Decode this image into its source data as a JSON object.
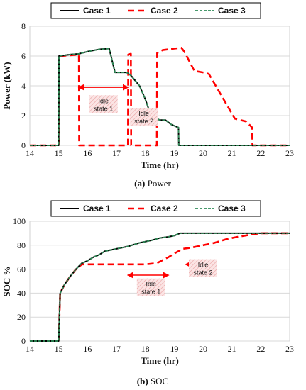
{
  "chart_data": [
    {
      "type": "line",
      "caption_label": "(a)",
      "caption_text": " Power",
      "xlabel": "Time (hr)",
      "ylabel": "Power (kW)",
      "xlim": [
        14,
        23
      ],
      "ylim": [
        0,
        8
      ],
      "xticks": [
        14,
        15,
        16,
        17,
        18,
        19,
        20,
        21,
        22,
        23
      ],
      "yticks": [
        0,
        2,
        4,
        6,
        8
      ],
      "legend": "top",
      "series": [
        {
          "name": "Case 1",
          "color": "#000000",
          "style": "solid",
          "x": [
            14,
            15,
            15.01,
            15.2,
            15.4,
            15.7,
            16.0,
            16.4,
            16.75,
            16.95,
            17.35,
            17.5,
            17.8,
            18.0,
            18.2,
            18.5,
            18.7,
            18.9,
            19.15,
            19.16,
            23
          ],
          "y": [
            0,
            0,
            6.0,
            6.05,
            6.1,
            6.15,
            6.3,
            6.45,
            6.5,
            4.9,
            4.9,
            4.7,
            4.0,
            3.1,
            2.0,
            1.7,
            1.7,
            1.4,
            1.2,
            0,
            0
          ]
        },
        {
          "name": "Case 2",
          "color": "#ff0000",
          "style": "dashed",
          "x": [
            14,
            15,
            15.01,
            15.4,
            15.7,
            15.71,
            17.4,
            17.41,
            17.5,
            17.51,
            18.4,
            18.41,
            18.6,
            19.0,
            19.25,
            19.35,
            19.7,
            20.0,
            20.2,
            20.5,
            20.8,
            21.1,
            21.3,
            21.5,
            21.7,
            21.71,
            23
          ],
          "y": [
            0,
            0,
            6.0,
            6.05,
            6.1,
            0,
            0,
            6.1,
            6.15,
            0,
            0,
            6.2,
            6.4,
            6.5,
            6.55,
            6.3,
            5.0,
            4.9,
            4.8,
            3.8,
            2.8,
            1.8,
            1.7,
            1.6,
            1.2,
            0,
            0
          ]
        },
        {
          "name": "Case 3",
          "color": "#2e8b57",
          "style": "dotted",
          "x": [
            14,
            15,
            15.01,
            15.2,
            15.4,
            15.7,
            16.0,
            16.4,
            16.75,
            16.95,
            17.35,
            17.5,
            17.8,
            18.0,
            18.2,
            18.5,
            18.7,
            18.9,
            19.15,
            19.16,
            23
          ],
          "y": [
            0,
            0,
            6.0,
            6.05,
            6.1,
            6.15,
            6.3,
            6.45,
            6.5,
            4.9,
            4.9,
            4.7,
            4.0,
            3.1,
            2.0,
            1.7,
            1.7,
            1.4,
            1.2,
            0,
            0
          ]
        }
      ],
      "annotations": [
        {
          "lines": [
            "Idle",
            "state 1"
          ],
          "x_from": 15.7,
          "x_to": 17.4,
          "y": 3.9,
          "label_x": 16.55,
          "label_y": 2.7
        },
        {
          "lines": [
            "Idle",
            "state 2"
          ],
          "x_from": 17.5,
          "x_to": 18.4,
          "y": 2.3,
          "label_x": 17.95,
          "label_y": 1.85
        }
      ]
    },
    {
      "type": "line",
      "caption_label": "(b)",
      "caption_text": " SOC",
      "xlabel": "Time (hr)",
      "ylabel": "SOC %",
      "xlim": [
        14,
        23
      ],
      "ylim": [
        0,
        100
      ],
      "xticks": [
        14,
        15,
        16,
        17,
        18,
        19,
        20,
        21,
        22,
        23
      ],
      "yticks": [
        0,
        20,
        40,
        60,
        80,
        100
      ],
      "legend": "top",
      "series": [
        {
          "name": "Case 1",
          "color": "#000000",
          "style": "solid",
          "x": [
            14,
            15,
            15.05,
            15.2,
            15.4,
            15.6,
            15.8,
            16.0,
            16.2,
            16.4,
            16.6,
            17.0,
            17.4,
            17.8,
            18.2,
            18.5,
            18.8,
            19.0,
            19.2,
            19.5,
            20,
            21,
            22,
            23
          ],
          "y": [
            0,
            0,
            40,
            47,
            54,
            60,
            65,
            67,
            70,
            72,
            75,
            77,
            79,
            82,
            84,
            86,
            87,
            88,
            90,
            90,
            90,
            90,
            90,
            90
          ]
        },
        {
          "name": "Case 2",
          "color": "#ff0000",
          "style": "dashed",
          "x": [
            14,
            15,
            15.05,
            15.2,
            15.4,
            15.6,
            15.8,
            16.5,
            17.4,
            17.5,
            17.8,
            18.0,
            18.4,
            18.8,
            19.0,
            19.3,
            19.6,
            20.0,
            20.4,
            20.8,
            21.2,
            21.7,
            22.0,
            23
          ],
          "y": [
            0,
            0,
            40,
            47,
            54,
            60,
            64,
            64,
            64,
            64,
            64,
            64,
            65,
            70,
            73,
            77,
            78,
            80,
            82,
            85,
            87,
            89,
            90,
            90
          ]
        },
        {
          "name": "Case 3",
          "color": "#2e8b57",
          "style": "dotted",
          "x": [
            14,
            15,
            15.05,
            15.2,
            15.4,
            15.6,
            15.8,
            16.0,
            16.2,
            16.4,
            16.6,
            17.0,
            17.4,
            17.8,
            18.2,
            18.5,
            18.8,
            19.0,
            19.2,
            19.5,
            20,
            21,
            22,
            23
          ],
          "y": [
            0,
            0,
            40,
            47,
            54,
            60,
            65,
            67,
            70,
            72,
            75,
            77,
            79,
            82,
            84,
            86,
            87,
            88,
            90,
            90,
            90,
            90,
            90,
            90
          ]
        }
      ],
      "annotations": [
        {
          "lines": [
            "Idle",
            "state 1"
          ],
          "x_from": 17.4,
          "x_to": 18.8,
          "y": 55,
          "label_x": 18.2,
          "label_y": 44
        },
        {
          "lines": [
            "Idle",
            "state 2"
          ],
          "x_from": 19.4,
          "x_to": 20.0,
          "y": 64,
          "label_x": 20.0,
          "label_y": 60
        }
      ]
    }
  ]
}
